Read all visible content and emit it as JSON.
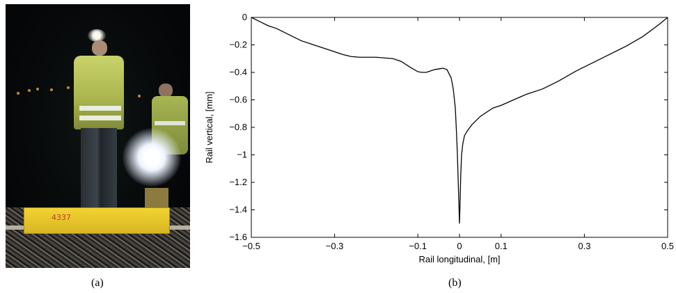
{
  "panel_a": {
    "caption": "(a)",
    "beam_marking": "4337"
  },
  "panel_b": {
    "caption": "(b)"
  },
  "chart_data": {
    "type": "line",
    "title": "",
    "xlabel": "Rail longitudinal, [m]",
    "ylabel": "Rail vertical, [mm]",
    "xlim": [
      -0.5,
      0.5
    ],
    "ylim": [
      -1.6,
      0
    ],
    "xticks": [
      -0.5,
      -0.3,
      -0.1,
      0,
      0.1,
      0.3,
      0.5
    ],
    "xtick_labels": [
      "−0.5",
      "−0.3",
      "−0.1",
      "0",
      "0.1",
      "0.3",
      "0.5"
    ],
    "yticks": [
      0,
      -0.2,
      -0.4,
      -0.6,
      -0.8,
      -1,
      -1.2,
      -1.4,
      -1.6
    ],
    "ytick_labels": [
      "0",
      "−0.2",
      "−0.4",
      "−0.6",
      "−0.8",
      "−1",
      "−1.2",
      "−1.4",
      "−1.6"
    ],
    "grid": false,
    "series": [
      {
        "color": "#000000",
        "x": [
          -0.5,
          -0.48,
          -0.46,
          -0.44,
          -0.42,
          -0.4,
          -0.38,
          -0.36,
          -0.34,
          -0.32,
          -0.3,
          -0.28,
          -0.26,
          -0.24,
          -0.22,
          -0.2,
          -0.18,
          -0.16,
          -0.14,
          -0.12,
          -0.1,
          -0.09,
          -0.08,
          -0.07,
          -0.06,
          -0.05,
          -0.04,
          -0.03,
          -0.02,
          -0.015,
          -0.01,
          -0.007,
          -0.005,
          -0.003,
          -0.001,
          0.0,
          0.001,
          0.003,
          0.005,
          0.008,
          0.012,
          0.02,
          0.03,
          0.05,
          0.08,
          0.1,
          0.13,
          0.16,
          0.2,
          0.24,
          0.28,
          0.32,
          0.36,
          0.4,
          0.44,
          0.48,
          0.5
        ],
        "y": [
          0.0,
          -0.03,
          -0.06,
          -0.08,
          -0.11,
          -0.14,
          -0.17,
          -0.19,
          -0.21,
          -0.23,
          -0.25,
          -0.27,
          -0.285,
          -0.29,
          -0.29,
          -0.29,
          -0.295,
          -0.3,
          -0.32,
          -0.36,
          -0.395,
          -0.4,
          -0.4,
          -0.39,
          -0.38,
          -0.375,
          -0.37,
          -0.38,
          -0.44,
          -0.52,
          -0.66,
          -0.85,
          -1.0,
          -1.2,
          -1.4,
          -1.5,
          -1.4,
          -1.15,
          -1.0,
          -0.92,
          -0.86,
          -0.82,
          -0.78,
          -0.72,
          -0.66,
          -0.64,
          -0.6,
          -0.56,
          -0.52,
          -0.46,
          -0.39,
          -0.33,
          -0.27,
          -0.21,
          -0.14,
          -0.05,
          0.0
        ]
      }
    ]
  }
}
